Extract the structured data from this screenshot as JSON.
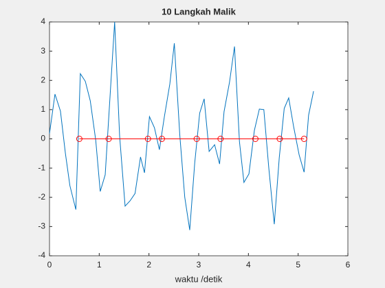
{
  "chart_data": {
    "type": "line",
    "title": "10 Langkah Malik",
    "x_label": "waktu /detik",
    "xlim": [
      0,
      6
    ],
    "ylim": [
      -4,
      4
    ],
    "xticks": [
      0,
      1,
      2,
      3,
      4,
      5,
      6
    ],
    "yticks": [
      -4,
      -3,
      -2,
      -1,
      0,
      1,
      2,
      3,
      4
    ],
    "series": [
      {
        "color": "#0072bd",
        "marker": "none",
        "x": [
          0,
          0.11,
          0.22,
          0.32,
          0.41,
          0.53,
          0.62,
          0.72,
          0.82,
          0.93,
          1.02,
          1.12,
          1.31,
          1.41,
          1.52,
          1.62,
          1.72,
          1.83,
          1.91,
          2.01,
          2.11,
          2.21,
          2.31,
          2.42,
          2.51,
          2.62,
          2.72,
          2.82,
          2.92,
          3.02,
          3.11,
          3.21,
          3.32,
          3.42,
          3.51,
          3.62,
          3.72,
          3.82,
          3.91,
          4.01,
          4.12,
          4.22,
          4.31,
          4.41,
          4.52,
          4.62,
          4.72,
          4.81,
          4.91,
          5.02,
          5.12,
          5.21,
          5.31
        ],
        "values": [
          0.18,
          1.53,
          0.95,
          -0.5,
          -1.6,
          -2.42,
          2.23,
          1.97,
          1.3,
          -0.05,
          -1.8,
          -1.23,
          4.0,
          0.1,
          -2.3,
          -2.12,
          -1.87,
          -0.62,
          -1.16,
          0.76,
          0.38,
          -0.37,
          0.76,
          1.88,
          3.27,
          0.13,
          -2.0,
          -3.12,
          -0.83,
          0.88,
          1.37,
          -0.43,
          -0.2,
          -0.86,
          0.93,
          1.94,
          3.16,
          -0.1,
          -1.49,
          -1.2,
          0.29,
          1.02,
          1.0,
          -1.0,
          -2.92,
          -0.65,
          1.04,
          1.4,
          0.41,
          -0.55,
          -1.14,
          0.81,
          1.63
        ]
      },
      {
        "color": "#ff0000",
        "marker": "circle",
        "x": [
          0.6,
          1.19,
          1.98,
          2.26,
          2.96,
          3.44,
          4.14,
          4.63,
          5.12
        ],
        "values": [
          0,
          0,
          0,
          0,
          0,
          0,
          0,
          0,
          0
        ]
      }
    ]
  }
}
